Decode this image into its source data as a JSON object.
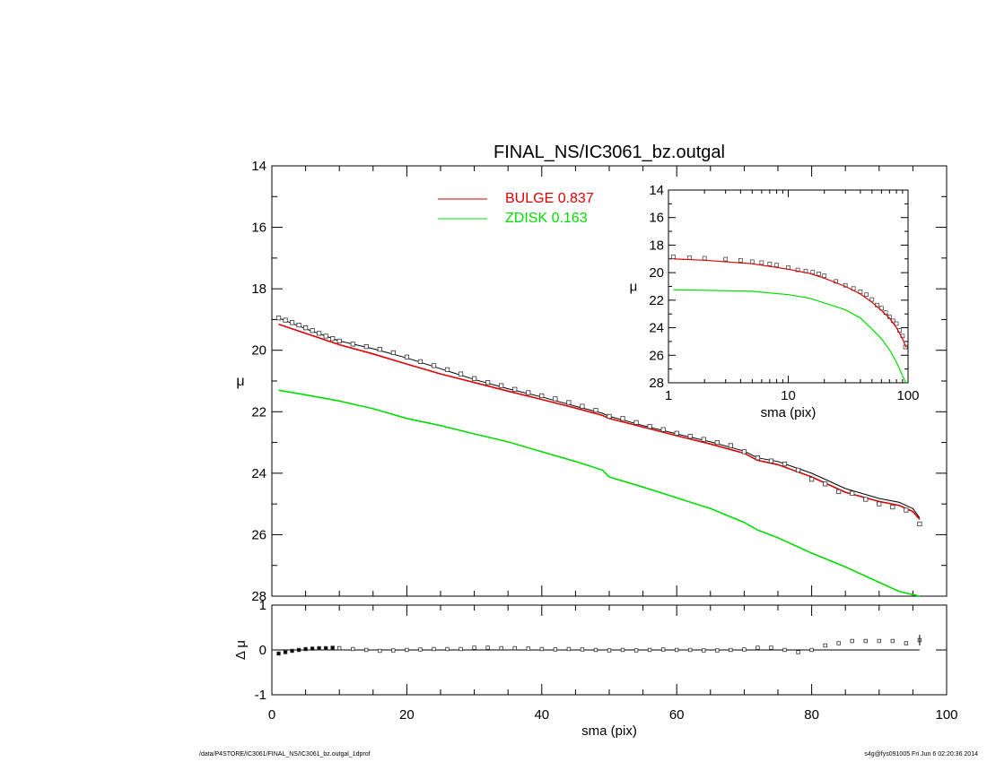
{
  "chart_data": [
    {
      "type": "line",
      "title": "FINAL_NS/IC3061_bz.outgal",
      "xlabel": "",
      "ylabel": "μ",
      "xlim": [
        0,
        100
      ],
      "ylim": [
        28,
        14
      ],
      "y_inverted": true,
      "yticks": [
        14,
        16,
        18,
        20,
        22,
        24,
        26,
        28
      ],
      "legend_placement": "top-center",
      "series": [
        {
          "name": "BULGE",
          "label": "0.837",
          "color": "#dd0000",
          "x": [
            1,
            5,
            10,
            15,
            20,
            25,
            30,
            35,
            40,
            45,
            49,
            50,
            55,
            60,
            65,
            70,
            72,
            75,
            80,
            85,
            90,
            93,
            95,
            96
          ],
          "y": [
            19.15,
            19.45,
            19.82,
            20.12,
            20.45,
            20.77,
            21.05,
            21.33,
            21.6,
            21.88,
            22.12,
            22.22,
            22.5,
            22.78,
            23.05,
            23.35,
            23.58,
            23.72,
            24.12,
            24.62,
            24.92,
            25.05,
            25.25,
            25.5
          ]
        },
        {
          "name": "ZDISK",
          "label": "0.163",
          "color": "#00dd00",
          "x": [
            1,
            5,
            10,
            15,
            20,
            25,
            30,
            35,
            40,
            45,
            49,
            50,
            55,
            60,
            65,
            70,
            72,
            75,
            80,
            85,
            90,
            93,
            96
          ],
          "y": [
            21.3,
            21.45,
            21.65,
            21.9,
            22.22,
            22.45,
            22.72,
            22.98,
            23.3,
            23.62,
            23.9,
            24.12,
            24.45,
            24.8,
            25.15,
            25.6,
            25.85,
            26.1,
            26.6,
            27.05,
            27.55,
            27.85,
            28.0
          ]
        },
        {
          "name": "",
          "type": "line",
          "color": "#000000",
          "x": [
            1,
            5,
            10,
            15,
            20,
            25,
            30,
            35,
            40,
            45,
            49,
            50,
            55,
            60,
            65,
            70,
            72,
            75,
            80,
            85,
            90,
            93,
            95,
            96
          ],
          "y": [
            18.95,
            19.3,
            19.7,
            19.95,
            20.25,
            20.6,
            20.95,
            21.25,
            21.52,
            21.82,
            22.05,
            22.15,
            22.45,
            22.72,
            22.98,
            23.28,
            23.5,
            23.62,
            24.0,
            24.5,
            24.82,
            24.95,
            25.15,
            25.45
          ]
        },
        {
          "name": "",
          "type": "scatter",
          "color": "#000000",
          "x": [
            1,
            2,
            3,
            4,
            5,
            6,
            7,
            8,
            9,
            10,
            12,
            14,
            16,
            18,
            20,
            22,
            24,
            26,
            28,
            30,
            32,
            34,
            36,
            38,
            40,
            42,
            44,
            46,
            48,
            50,
            52,
            54,
            56,
            58,
            60,
            62,
            64,
            66,
            68,
            70,
            72,
            74,
            76,
            78,
            80,
            82,
            84,
            86,
            88,
            90,
            92,
            94,
            96
          ],
          "y": [
            18.95,
            19.02,
            19.1,
            19.18,
            19.27,
            19.36,
            19.45,
            19.54,
            19.62,
            19.7,
            19.8,
            19.88,
            19.97,
            20.08,
            20.22,
            20.37,
            20.5,
            20.63,
            20.77,
            20.92,
            21.05,
            21.15,
            21.27,
            21.38,
            21.48,
            21.58,
            21.7,
            21.82,
            21.95,
            22.15,
            22.22,
            22.35,
            22.48,
            22.58,
            22.7,
            22.8,
            22.9,
            23.0,
            23.1,
            23.3,
            23.5,
            23.6,
            23.7,
            23.9,
            24.2,
            24.35,
            24.6,
            24.65,
            24.85,
            25.0,
            25.1,
            25.2,
            25.65
          ]
        }
      ]
    },
    {
      "type": "scatter",
      "title": "",
      "xlabel": "sma (pix)",
      "ylabel": "Δ μ",
      "xlim": [
        0,
        100
      ],
      "ylim": [
        -1,
        1
      ],
      "xticks": [
        0,
        20,
        40,
        60,
        80,
        100
      ],
      "yticks": [
        -1,
        0,
        1
      ],
      "series": [
        {
          "name": "",
          "color": "#000000",
          "x": [
            1,
            2,
            3,
            4,
            5,
            6,
            7,
            8,
            9,
            10,
            12,
            14,
            16,
            18,
            20,
            22,
            24,
            26,
            28,
            30,
            32,
            34,
            36,
            38,
            40,
            42,
            44,
            46,
            48,
            50,
            52,
            54,
            56,
            58,
            60,
            62,
            64,
            66,
            68,
            70,
            72,
            74,
            76,
            78,
            80,
            82,
            84,
            86,
            88,
            90,
            92,
            94,
            96
          ],
          "y": [
            -0.08,
            -0.05,
            -0.02,
            0.0,
            0.02,
            0.03,
            0.04,
            0.04,
            0.05,
            0.04,
            0.02,
            0.0,
            -0.02,
            -0.01,
            0.0,
            0.01,
            0.02,
            0.02,
            0.02,
            0.05,
            0.05,
            0.04,
            0.04,
            0.03,
            0.02,
            0.01,
            0.02,
            0.01,
            0.0,
            -0.01,
            0.0,
            -0.01,
            0.0,
            0.01,
            0.0,
            0.0,
            -0.01,
            -0.01,
            0.0,
            0.01,
            0.05,
            0.05,
            0.0,
            -0.05,
            0.0,
            0.1,
            0.15,
            0.2,
            0.2,
            0.2,
            0.2,
            0.15,
            0.22
          ]
        },
        {
          "name": "",
          "type": "line",
          "color": "#000000",
          "x": [
            0,
            96
          ],
          "y": [
            0,
            0
          ]
        }
      ]
    },
    {
      "type": "line",
      "title": "",
      "xlabel": "sma (pix)",
      "ylabel": "μ",
      "xscale": "log",
      "xlim": [
        1,
        100
      ],
      "ylim": [
        28,
        14
      ],
      "y_inverted": true,
      "xticks": [
        1,
        10,
        100
      ],
      "yticks": [
        14,
        16,
        18,
        20,
        22,
        24,
        26,
        28
      ],
      "series": [
        {
          "name": "",
          "type": "scatter",
          "color": "#000000",
          "x": [
            1.1,
            1.5,
            2,
            3,
            4,
            5,
            6,
            7,
            8,
            10,
            12,
            14,
            16,
            18,
            20,
            25,
            30,
            35,
            40,
            45,
            50,
            55,
            60,
            65,
            70,
            75,
            80,
            85,
            90,
            95
          ],
          "y": [
            18.85,
            18.9,
            18.95,
            19.02,
            19.1,
            19.2,
            19.27,
            19.36,
            19.45,
            19.62,
            19.8,
            19.88,
            19.97,
            20.08,
            20.22,
            20.63,
            20.92,
            21.15,
            21.38,
            21.6,
            21.95,
            22.35,
            22.58,
            22.9,
            23.2,
            23.5,
            23.7,
            24.2,
            24.6,
            25.4
          ]
        },
        {
          "name": "",
          "type": "line",
          "color": "#dd0000",
          "x": [
            1.1,
            2,
            5,
            10,
            15,
            20,
            30,
            40,
            50,
            60,
            70,
            80,
            90,
            96
          ],
          "y": [
            19.0,
            19.1,
            19.35,
            19.75,
            20.05,
            20.4,
            21.0,
            21.55,
            22.15,
            22.75,
            23.3,
            24.0,
            24.8,
            25.4
          ]
        },
        {
          "name": "",
          "type": "line",
          "color": "#00dd00",
          "x": [
            1.1,
            2,
            5,
            10,
            15,
            20,
            30,
            40,
            50,
            60,
            70,
            80,
            90,
            96
          ],
          "y": [
            21.25,
            21.28,
            21.35,
            21.6,
            21.85,
            22.2,
            22.7,
            23.3,
            24.1,
            24.8,
            25.6,
            26.5,
            27.5,
            28.0
          ]
        }
      ]
    }
  ],
  "legend": [
    {
      "name": "BULGE",
      "value": "0.837",
      "color": "#dd0000"
    },
    {
      "name": "ZDISK",
      "value": "0.163",
      "color": "#00dd00"
    }
  ],
  "footer": {
    "left": "/data/P4STORE/IC3061/FINAL_NS/IC3061_bz.outgal_1dprof",
    "right": "s4g@fys091005  Fri Jun  6 02:20:36 2014"
  }
}
